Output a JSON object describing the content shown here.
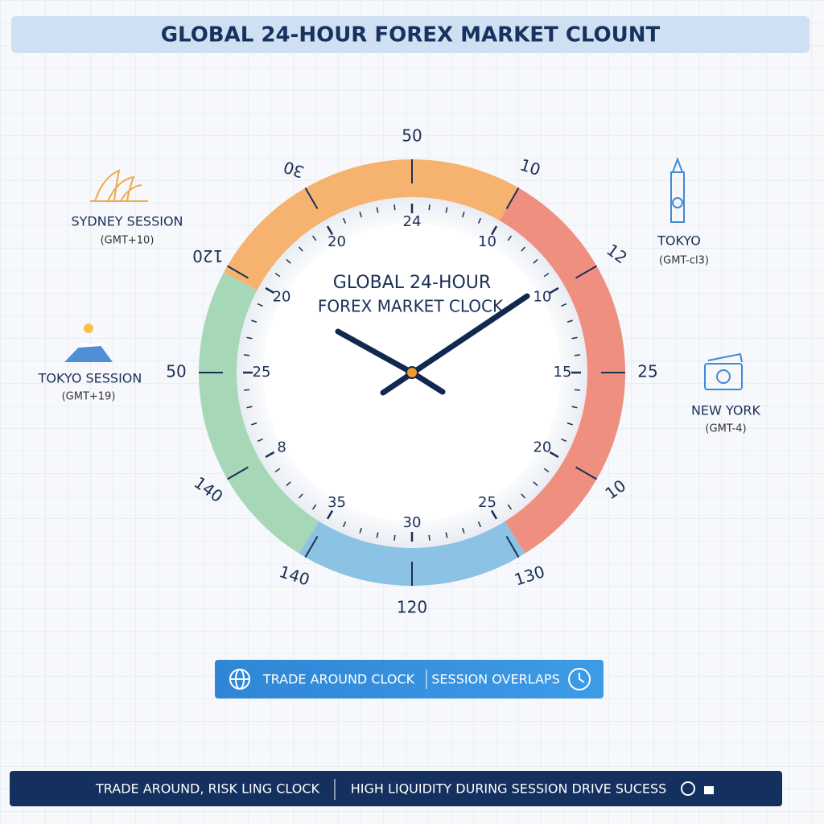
{
  "header": {
    "title": "GLOBAL 24-HOUR FOREX MARKET CLOUNT"
  },
  "clock": {
    "outer_labels": [
      "50",
      "10",
      "12",
      "25",
      "10",
      "130",
      "120",
      "140",
      "140",
      "50",
      "120",
      "30"
    ],
    "inner_labels": [
      "24",
      "10",
      "10",
      "15",
      "20",
      "25",
      "30",
      "35",
      "8",
      "25",
      "20",
      "20"
    ],
    "center_title": [
      "GLOBAL 24-HOUR",
      "FOREX MARKET CLOCK"
    ]
  },
  "sessions": [
    {
      "name": "SYDNEY SESSION",
      "zone": "(GMT+10)"
    },
    {
      "name": "TOKYO SESSION",
      "zone": "(GMT+19)"
    },
    {
      "name": "TOKYO",
      "zone": "(GMT-cl3)"
    },
    {
      "name": "NEW YORK",
      "zone": "(GMT-4)"
    }
  ],
  "button": {
    "left": "TRADE AROUND CLOCK",
    "right": "SESSION OVERLAPS"
  },
  "footer": {
    "left": "TRADE AROUND, RISK LING CLOCK",
    "right": "HIGH LIQUIDITY DURING SESSION DRIVE SUCESS"
  }
}
